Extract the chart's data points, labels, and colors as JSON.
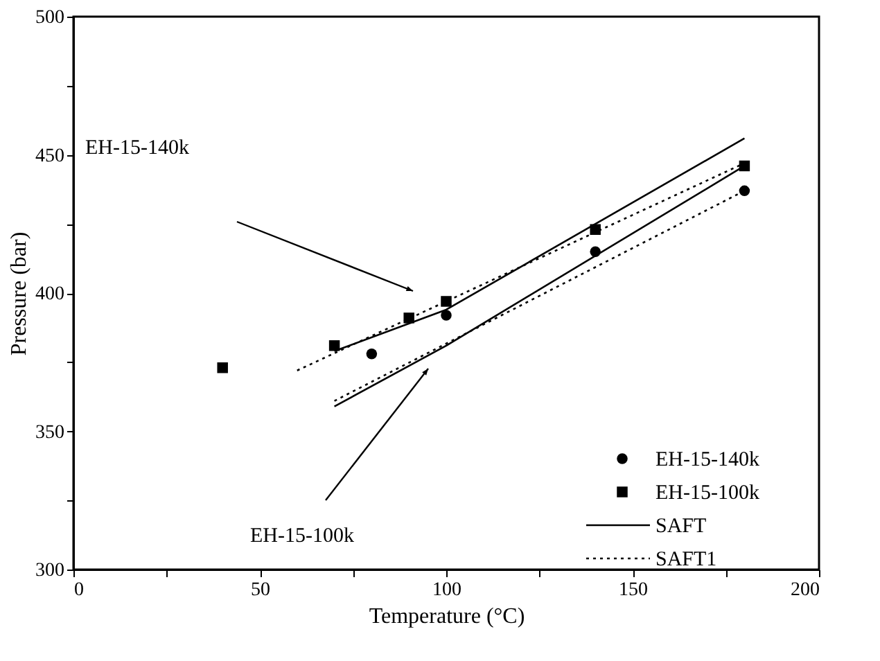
{
  "chart_data": {
    "type": "scatter",
    "xlabel": "Temperature (°C)",
    "ylabel": "Pressure (bar)",
    "xlim": [
      0,
      200
    ],
    "ylim": [
      300,
      500
    ],
    "xticks": [
      0,
      {
        "value": 25,
        "label": null
      },
      50,
      {
        "value": 75,
        "label": null
      },
      100,
      {
        "value": 125,
        "label": null
      },
      150,
      {
        "value": 175,
        "label": null
      },
      200
    ],
    "yticks": [
      300,
      {
        "value": 325,
        "label": null
      },
      350,
      {
        "value": 375,
        "label": null
      },
      400,
      {
        "value": 425,
        "label": null
      },
      450,
      {
        "value": 475,
        "label": null
      },
      500
    ],
    "grid": false,
    "legend": "bottom right",
    "series": [
      {
        "name": "EH-15-140k",
        "marker": "circle",
        "color": "#000000",
        "x": [
          80,
          100,
          140,
          180
        ],
        "values": [
          378,
          392,
          415,
          437
        ]
      },
      {
        "name": "EH-15-100k",
        "marker": "square",
        "color": "#000000",
        "x": [
          40,
          70,
          90,
          100,
          140,
          180
        ],
        "values": [
          373,
          381,
          391,
          397,
          423,
          446
        ]
      },
      {
        "name": "SAFT",
        "type": "line",
        "line_style": "solid",
        "marker": "none",
        "color": "#000000",
        "x": [
          70,
          100,
          180
        ],
        "values": [
          379,
          394,
          456
        ]
      },
      {
        "type": "line",
        "line_style": "solid",
        "marker": "none",
        "color": "#000000",
        "x": [
          70,
          100,
          180
        ],
        "values": [
          359,
          381,
          446
        ]
      },
      {
        "name": "SAFT1",
        "type": "line",
        "line_style": "dotted",
        "marker": "none",
        "color": "#000000",
        "x": [
          60,
          180
        ],
        "values": [
          372,
          447
        ]
      },
      {
        "type": "line",
        "line_style": "dotted",
        "marker": "none",
        "color": "#000000",
        "x": [
          70,
          180
        ],
        "values": [
          361,
          437
        ]
      }
    ],
    "annotations": [
      "EH-15-140k",
      "EH-15-100k"
    ]
  }
}
